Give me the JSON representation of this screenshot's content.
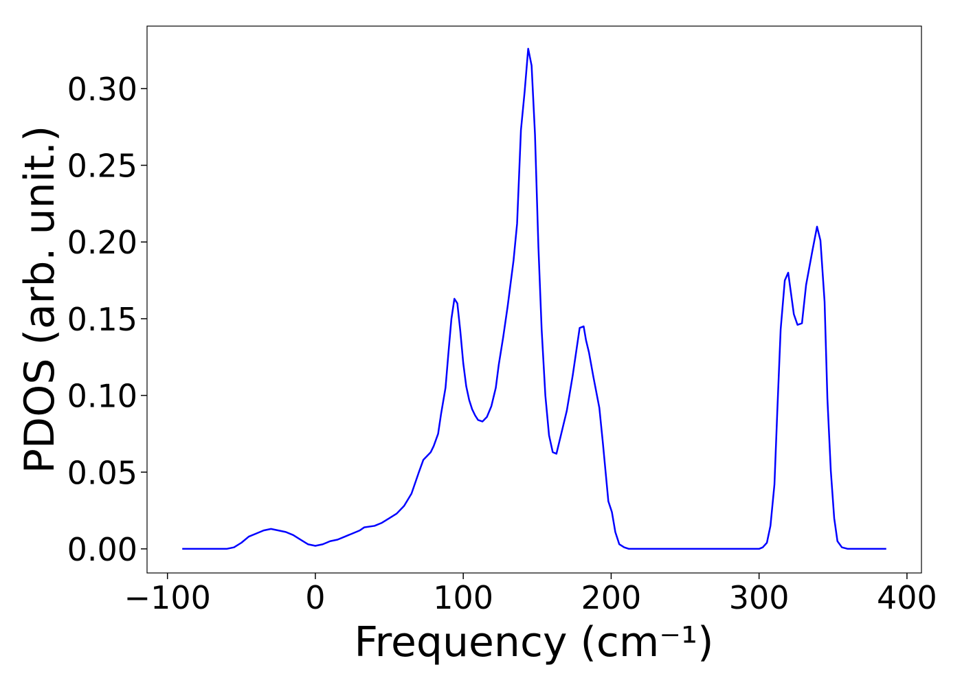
{
  "chart_data": {
    "type": "line",
    "xlabel": "Frequency (cm⁻¹)",
    "ylabel": "PDOS (arb. unit.)",
    "x": [
      -90,
      -60,
      -55,
      -50,
      -45,
      -40,
      -35,
      -30,
      -25,
      -20,
      -15,
      -10,
      -5,
      0,
      5,
      10,
      15,
      20,
      25,
      30,
      33,
      40,
      45,
      50,
      55,
      60,
      65,
      70,
      73,
      78,
      80,
      83,
      85,
      88,
      90,
      92,
      94,
      96,
      98,
      100,
      102,
      104,
      106,
      108,
      110,
      113,
      116,
      119,
      122,
      124,
      127,
      130,
      134,
      136.4,
      139,
      141.5,
      143.9,
      146.2,
      148.5,
      150.8,
      153,
      155.5,
      158,
      160.5,
      163,
      165,
      170,
      174,
      178.7,
      181.4,
      183,
      185,
      188,
      192,
      194.4,
      198.1,
      200.5,
      202.8,
      205.5,
      208.8,
      212,
      300,
      302.5,
      305.3,
      307.7,
      310.4,
      312.3,
      314.6,
      317.4,
      319.7,
      323.5,
      326,
      329,
      331.8,
      336,
      339.2,
      341.5,
      344.3,
      346.2,
      348.5,
      350.8,
      353,
      356,
      360,
      386
    ],
    "series": [
      {
        "name": "PDOS",
        "color": "#0000ff",
        "values": [
          0,
          0,
          0.001,
          0.004,
          0.008,
          0.01,
          0.012,
          0.013,
          0.012,
          0.011,
          0.009,
          0.006,
          0.003,
          0.002,
          0.003,
          0.005,
          0.006,
          0.008,
          0.01,
          0.012,
          0.014,
          0.015,
          0.017,
          0.02,
          0.023,
          0.028,
          0.036,
          0.05,
          0.058,
          0.063,
          0.067,
          0.075,
          0.088,
          0.105,
          0.128,
          0.15,
          0.163,
          0.16,
          0.142,
          0.121,
          0.106,
          0.097,
          0.091,
          0.087,
          0.084,
          0.083,
          0.086,
          0.093,
          0.105,
          0.12,
          0.138,
          0.158,
          0.188,
          0.212,
          0.273,
          0.298,
          0.326,
          0.315,
          0.27,
          0.197,
          0.143,
          0.1,
          0.074,
          0.063,
          0.062,
          0.07,
          0.09,
          0.113,
          0.144,
          0.145,
          0.136,
          0.128,
          0.112,
          0.092,
          0.069,
          0.031,
          0.024,
          0.011,
          0.003,
          0.001,
          0,
          0,
          0.001,
          0.004,
          0.015,
          0.042,
          0.089,
          0.143,
          0.175,
          0.18,
          0.153,
          0.146,
          0.147,
          0.172,
          0.194,
          0.21,
          0.201,
          0.161,
          0.098,
          0.051,
          0.02,
          0.005,
          0.001,
          0,
          0
        ]
      }
    ],
    "xlim": [
      -113.8,
      409.8
    ],
    "ylim": [
      -0.0157,
      0.3407
    ],
    "xticks": [
      {
        "value": -100,
        "label": "−100"
      },
      0,
      100,
      200,
      300,
      400
    ],
    "yticks": [
      {
        "value": 0,
        "label": "0.00"
      },
      {
        "value": 0.05,
        "label": "0.05"
      },
      {
        "value": 0.1,
        "label": "0.10"
      },
      {
        "value": 0.15,
        "label": "0.15"
      },
      {
        "value": 0.2,
        "label": "0.20"
      },
      {
        "value": 0.25,
        "label": "0.25"
      },
      {
        "value": 0.3,
        "label": "0.30"
      }
    ]
  }
}
